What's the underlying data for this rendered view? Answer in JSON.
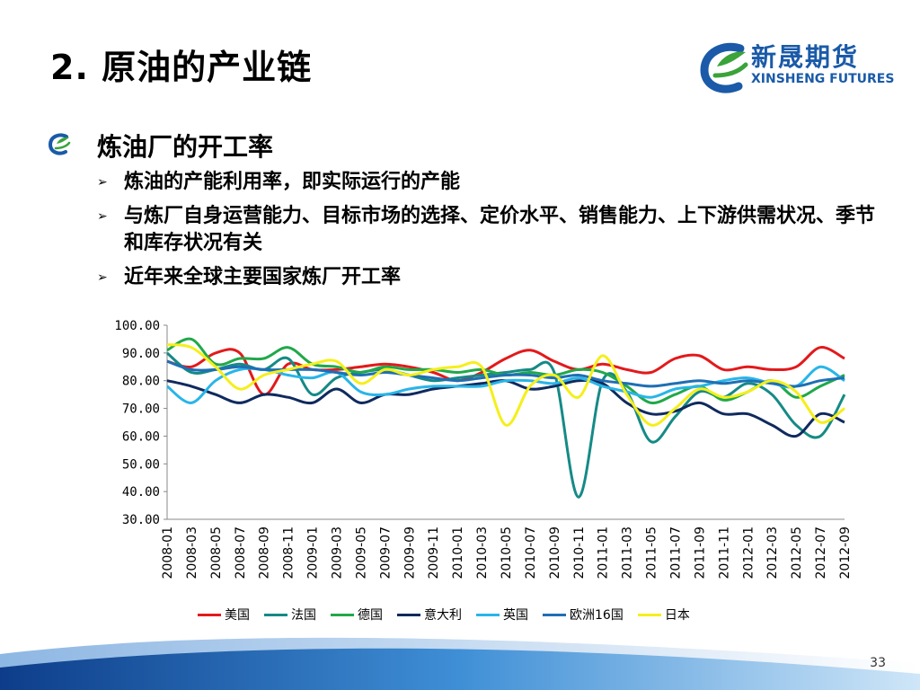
{
  "slide": {
    "title": "2. 原油的产业链",
    "logo_cn": "新晟期货",
    "logo_en": "XINSHENG FUTURES",
    "bullet_main": "炼油厂的开工率",
    "sub_bullets": [
      "炼油的产能利用率，即实际运行的产能",
      "与炼厂自身运营能力、目标市场的选择、定价水平、销售能力、上下游供需状况、季节和库存状况有关",
      "近年来全球主要国家炼厂开工率"
    ],
    "page_number": "33",
    "colors": {
      "accent": "#1a5aa8",
      "logo_green": "#3aa33a",
      "arrow": "#000000"
    }
  },
  "chart_data": {
    "type": "line",
    "title": "",
    "xlabel": "",
    "ylabel": "",
    "ylim": [
      30,
      100
    ],
    "yticks": [
      "100.00",
      "90.00",
      "80.00",
      "70.00",
      "60.00",
      "50.00",
      "40.00",
      "30.00"
    ],
    "categories": [
      "2008-01",
      "2008-03",
      "2008-05",
      "2008-07",
      "2008-09",
      "2008-11",
      "2009-01",
      "2009-03",
      "2009-05",
      "2009-07",
      "2009-09",
      "2009-11",
      "2010-01",
      "2010-03",
      "2010-05",
      "2010-07",
      "2010-09",
      "2010-11",
      "2011-01",
      "2011-03",
      "2011-05",
      "2011-07",
      "2011-09",
      "2011-11",
      "2012-01",
      "2012-03",
      "2012-05",
      "2012-07",
      "2012-09"
    ],
    "legend_position": "bottom",
    "grid": false,
    "series": [
      {
        "name": "美国",
        "color": "#e3191b",
        "values": [
          87,
          85,
          90,
          90,
          75,
          86,
          84,
          84,
          85,
          86,
          85,
          83,
          80,
          83,
          88,
          91,
          87,
          84,
          86,
          84,
          83,
          88,
          89,
          84,
          85,
          84,
          85,
          92,
          88
        ]
      },
      {
        "name": "法国",
        "color": "#158a86",
        "values": [
          90,
          83,
          84,
          86,
          84,
          88,
          75,
          81,
          83,
          84,
          82,
          80,
          81,
          82,
          83,
          84,
          83,
          38,
          80,
          76,
          58,
          67,
          76,
          74,
          79,
          75,
          64,
          60,
          75
        ]
      },
      {
        "name": "德国",
        "color": "#21a84a",
        "values": [
          91,
          95,
          86,
          88,
          88,
          92,
          86,
          85,
          83,
          85,
          84,
          84,
          83,
          84,
          82,
          83,
          82,
          84,
          83,
          78,
          72,
          75,
          78,
          73,
          76,
          80,
          74,
          78,
          82
        ]
      },
      {
        "name": "意大利",
        "color": "#0f2a5e",
        "values": [
          80,
          78,
          75,
          72,
          75,
          74,
          72,
          77,
          72,
          75,
          75,
          77,
          78,
          79,
          80,
          77,
          78,
          80,
          79,
          72,
          68,
          69,
          72,
          68,
          68,
          64,
          60,
          68,
          65
        ]
      },
      {
        "name": "英国",
        "color": "#29b5e8",
        "values": [
          78,
          72,
          80,
          84,
          84,
          82,
          81,
          83,
          76,
          75,
          77,
          78,
          78,
          78,
          80,
          80,
          79,
          81,
          78,
          76,
          74,
          77,
          78,
          80,
          81,
          79,
          78,
          85,
          80
        ]
      },
      {
        "name": "欧洲16国",
        "color": "#1f6fb4",
        "values": [
          87,
          84,
          84,
          85,
          84,
          84,
          84,
          83,
          82,
          83,
          82,
          81,
          80,
          81,
          82,
          82,
          81,
          82,
          80,
          79,
          78,
          79,
          80,
          79,
          80,
          79,
          78,
          80,
          81
        ]
      },
      {
        "name": "日本",
        "color": "#f5ef1b",
        "values": [
          93,
          92,
          85,
          77,
          82,
          84,
          86,
          87,
          79,
          84,
          82,
          84,
          85,
          85,
          64,
          78,
          82,
          74,
          89,
          75,
          64,
          70,
          77,
          74,
          76,
          80,
          76,
          65,
          70
        ]
      }
    ]
  }
}
